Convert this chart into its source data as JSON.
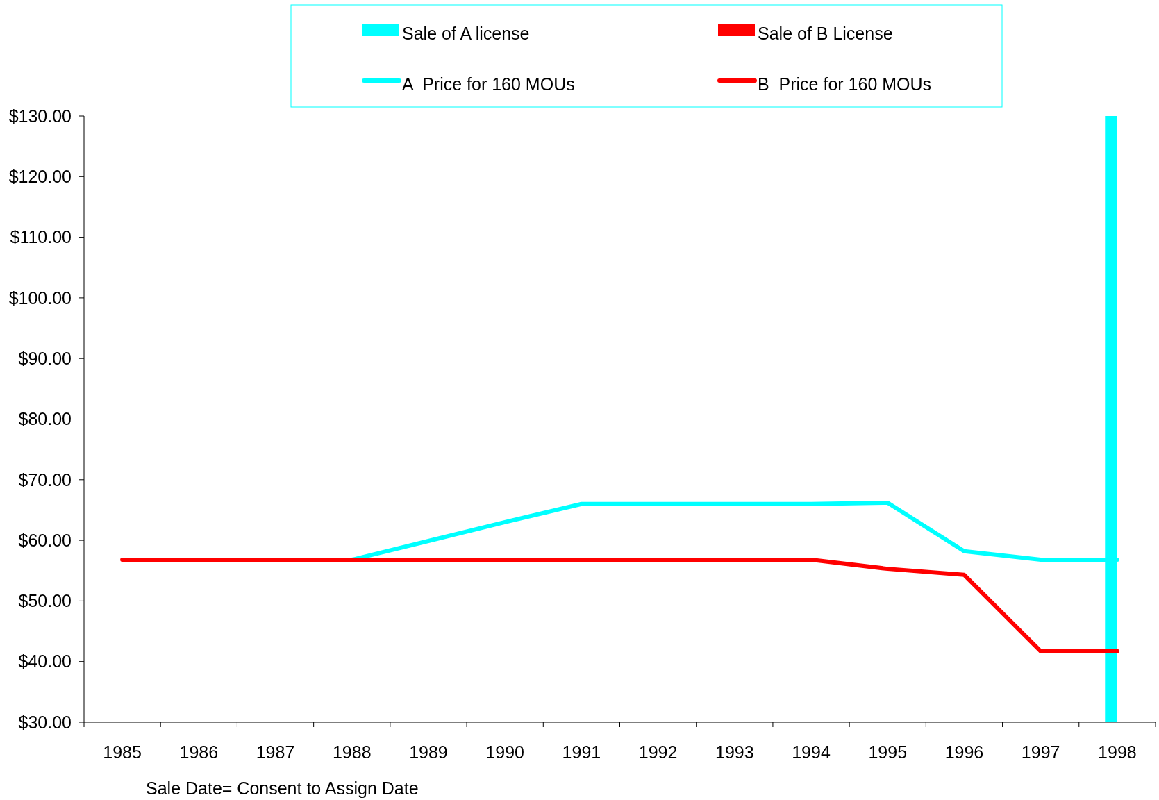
{
  "chart_data": {
    "type": "bar",
    "xlabel": "Sale Date= Consent to Assign Date",
    "categories": [
      "1985",
      "1986",
      "1987",
      "1988",
      "1989",
      "1990",
      "1991",
      "1992",
      "1993",
      "1994",
      "1995",
      "1996",
      "1997",
      "1998"
    ],
    "series": [
      {
        "name": "Sale of A license",
        "color": "#00ffff",
        "values": [
          null,
          null,
          null,
          null,
          null,
          null,
          null,
          null,
          null,
          null,
          null,
          null,
          null,
          130
        ]
      },
      {
        "name": "Sale of B License",
        "color": "#ff0000",
        "values": [
          null,
          null,
          null,
          null,
          null,
          null,
          null,
          null,
          null,
          null,
          null,
          null,
          null,
          null
        ]
      },
      {
        "name": "A  Price for 160 MOUs",
        "type": "line",
        "color": "#00ffff",
        "values": [
          null,
          null,
          null,
          56.8,
          59.9,
          63.0,
          66.0,
          66.0,
          66.0,
          66.0,
          66.2,
          58.2,
          56.8,
          56.8
        ]
      },
      {
        "name": "B  Price for 160 MOUs",
        "type": "line",
        "color": "#ff0000",
        "values": [
          56.8,
          56.8,
          56.8,
          56.8,
          56.8,
          56.8,
          56.8,
          56.8,
          56.8,
          56.8,
          55.3,
          54.3,
          41.7,
          41.7
        ]
      }
    ],
    "ylim": [
      30,
      130
    ],
    "yticks": [
      {
        "value": 30,
        "label": "$30.00"
      },
      {
        "value": 40,
        "label": "$40.00"
      },
      {
        "value": 50,
        "label": "$50.00"
      },
      {
        "value": 60,
        "label": "$60.00"
      },
      {
        "value": 70,
        "label": "$70.00"
      },
      {
        "value": 80,
        "label": "$80.00"
      },
      {
        "value": 90,
        "label": "$90.00"
      },
      {
        "value": 100,
        "label": "$100.00"
      },
      {
        "value": 110,
        "label": "$110.00"
      },
      {
        "value": 120,
        "label": "$120.00"
      },
      {
        "value": 130,
        "label": "$130.00"
      }
    ],
    "legend": "top"
  }
}
